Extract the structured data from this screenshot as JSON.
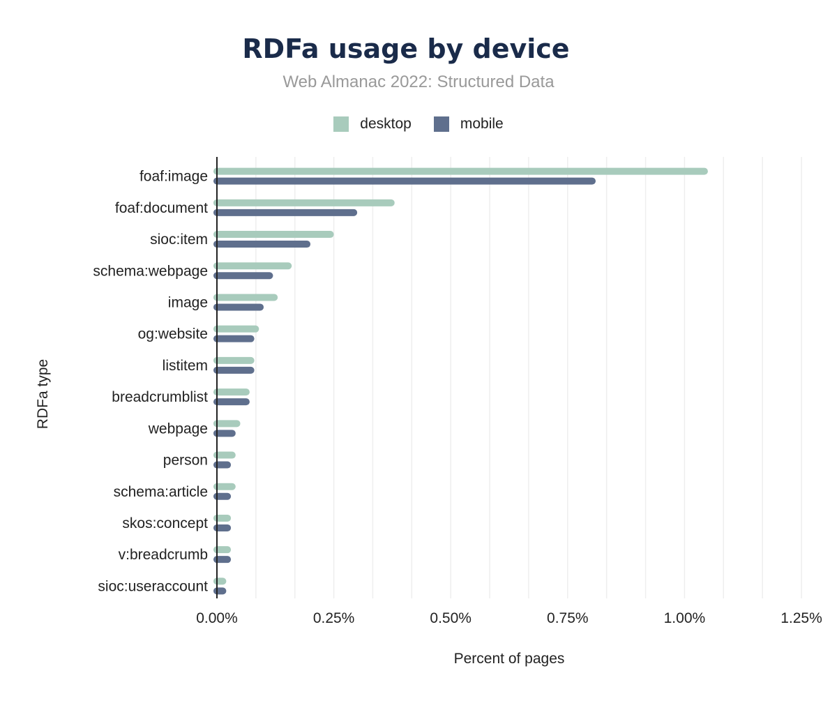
{
  "chart_data": {
    "type": "bar",
    "orientation": "horizontal",
    "title": "RDFa usage by device",
    "subtitle": "Web Almanac 2022: Structured Data",
    "xlabel": "Percent of pages",
    "ylabel": "RDFa type",
    "xlim": [
      0,
      1.25
    ],
    "x_ticks": [
      "0.00%",
      "0.25%",
      "0.50%",
      "0.75%",
      "1.00%",
      "1.25%"
    ],
    "grid": true,
    "legend_position": "top",
    "categories": [
      "foaf:image",
      "foaf:document",
      "sioc:item",
      "schema:webpage",
      "image",
      "og:website",
      "listitem",
      "breadcrumblist",
      "webpage",
      "person",
      "schema:article",
      "skos:concept",
      "v:breadcrumb",
      "sioc:useraccount"
    ],
    "series": [
      {
        "name": "desktop",
        "color": "#a8cbbc",
        "values": [
          1.05,
          0.38,
          0.25,
          0.16,
          0.13,
          0.09,
          0.08,
          0.07,
          0.05,
          0.04,
          0.04,
          0.03,
          0.03,
          0.02
        ]
      },
      {
        "name": "mobile",
        "color": "#5f6f8d",
        "values": [
          0.81,
          0.3,
          0.2,
          0.12,
          0.1,
          0.08,
          0.08,
          0.07,
          0.04,
          0.03,
          0.03,
          0.03,
          0.03,
          0.02
        ]
      }
    ]
  }
}
